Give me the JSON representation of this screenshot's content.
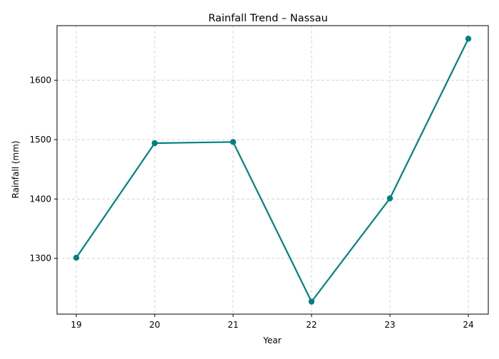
{
  "chart_data": {
    "type": "line",
    "title": "Rainfall Trend – Nassau",
    "xlabel": "Year",
    "ylabel": "Rainfall (mm)",
    "categories": [
      "19",
      "20",
      "21",
      "22",
      "23",
      "24"
    ],
    "series": [
      {
        "values": [
          1301,
          1494,
          1496,
          1227,
          1401,
          1670
        ],
        "color": "#008080",
        "marker": "circle"
      }
    ],
    "yticks": [
      1300,
      1400,
      1500,
      1600
    ],
    "ylim": [
      1206,
      1692
    ],
    "grid": true,
    "grid_style": "dashed",
    "legend": false
  }
}
